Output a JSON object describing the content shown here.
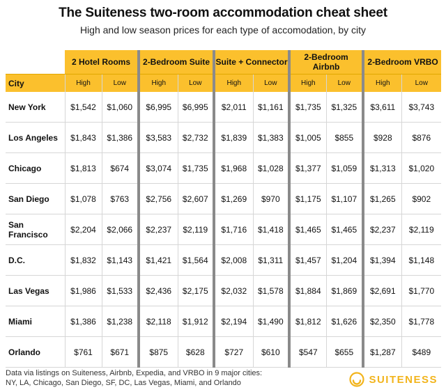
{
  "title": "The Suiteness two-room accommodation cheat sheet",
  "subtitle": "High and low season prices for each type of accomodation, by city",
  "header": {
    "groups": [
      "2 Hotel Rooms",
      "2-Bedroom Suite",
      "Suite + Connector",
      "2-Bedroom Airbnb",
      "2-Bedroom VRBO"
    ],
    "city_label": "City",
    "high_label": "High",
    "low_label": "Low"
  },
  "rows": [
    {
      "city": "New York",
      "v": [
        "$1,542",
        "$1,060",
        "$6,995",
        "$6,995",
        "$2,011",
        "$1,161",
        "$1,735",
        "$1,325",
        "$3,611",
        "$3,743"
      ]
    },
    {
      "city": "Los Angeles",
      "v": [
        "$1,843",
        "$1,386",
        "$3,583",
        "$2,732",
        "$1,839",
        "$1,383",
        "$1,005",
        "$855",
        "$928",
        "$876"
      ]
    },
    {
      "city": "Chicago",
      "v": [
        "$1,813",
        "$674",
        "$3,074",
        "$1,735",
        "$1,968",
        "$1,028",
        "$1,377",
        "$1,059",
        "$1,313",
        "$1,020"
      ]
    },
    {
      "city": "San Diego",
      "v": [
        "$1,078",
        "$763",
        "$2,756",
        "$2,607",
        "$1,269",
        "$970",
        "$1,175",
        "$1,107",
        "$1,265",
        "$902"
      ]
    },
    {
      "city": "San Francisco",
      "v": [
        "$2,204",
        "$2,066",
        "$2,237",
        "$2,119",
        "$1,716",
        "$1,418",
        "$1,465",
        "$1,465",
        "$2,237",
        "$2,119"
      ]
    },
    {
      "city": "D.C.",
      "v": [
        "$1,832",
        "$1,143",
        "$1,421",
        "$1,564",
        "$2,008",
        "$1,311",
        "$1,457",
        "$1,204",
        "$1,394",
        "$1,148"
      ]
    },
    {
      "city": "Las Vegas",
      "v": [
        "$1,986",
        "$1,533",
        "$2,436",
        "$2,175",
        "$2,032",
        "$1,578",
        "$1,884",
        "$1,869",
        "$2,691",
        "$1,770"
      ]
    },
    {
      "city": "Miami",
      "v": [
        "$1,386",
        "$1,238",
        "$2,118",
        "$1,912",
        "$2,194",
        "$1,490",
        "$1,812",
        "$1,626",
        "$2,350",
        "$1,778"
      ]
    },
    {
      "city": "Orlando",
      "v": [
        "$761",
        "$671",
        "$875",
        "$628",
        "$727",
        "$610",
        "$547",
        "$655",
        "$1,287",
        "$489"
      ]
    }
  ],
  "footnote": {
    "line1": "Data via listings on Suiteness, Airbnb, Expedia, and VRBO in 9 major cities:",
    "line2": "NY, LA, Chicago, San Diego, SF, DC, Las Vegas, Miami, and Orlando"
  },
  "brand": {
    "name": "SUITENESS",
    "color": "#f2b41c",
    "logo_icon": "suiteness-logo-icon"
  },
  "colors": {
    "header_fill": "#fbc02d",
    "separator": "#8a8a8a"
  }
}
